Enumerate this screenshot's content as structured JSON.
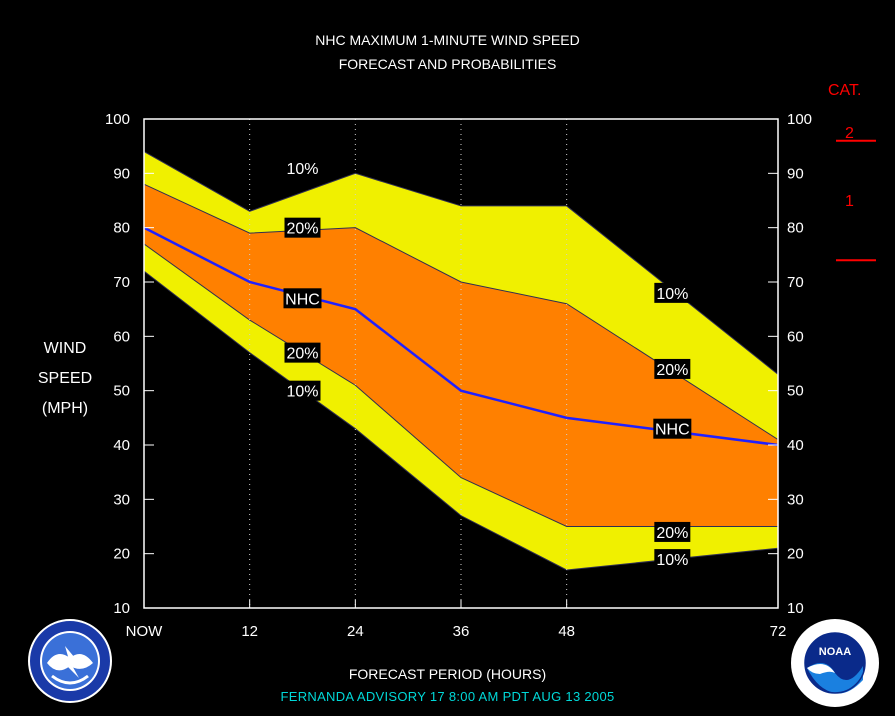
{
  "header": {
    "title_line1": "NHC MAXIMUM 1-MINUTE WIND SPEED",
    "title_line2": "FORECAST AND PROBABILITIES"
  },
  "ylabel": {
    "line1": "WIND",
    "line2": "SPEED",
    "line3": "(MPH)"
  },
  "xlabel": "FORECAST PERIOD (HOURS)",
  "advisory": "FERNANDA   ADVISORY  17  8:00  AM  PDT  AUG  13  2005",
  "category": {
    "label": "CAT.",
    "cat2": "2",
    "cat1": "1"
  },
  "colors": {
    "yellow": "#f0f000",
    "orange": "#ff8000",
    "nhc_line": "#2020ff",
    "cat": "#ff0000",
    "advisory": "#00d8d8"
  },
  "logos": {
    "left": "nws-logo",
    "right": "noaa-logo"
  },
  "chart_data": {
    "type": "area",
    "x_ticks": [
      {
        "x": 0,
        "label": "NOW"
      },
      {
        "x": 12,
        "label": "12"
      },
      {
        "x": 24,
        "label": "24"
      },
      {
        "x": 36,
        "label": "36"
      },
      {
        "x": 48,
        "label": "48"
      },
      {
        "x": 72,
        "label": "72"
      }
    ],
    "xlim": [
      0,
      72
    ],
    "ylim": [
      10,
      100
    ],
    "y_ticks": [
      10,
      20,
      30,
      40,
      50,
      60,
      70,
      80,
      90,
      100
    ],
    "gridlines_x": [
      12,
      24,
      36,
      48
    ],
    "x": [
      0,
      12,
      24,
      36,
      48,
      72
    ],
    "series": [
      {
        "name": "10%",
        "role": "upper_10",
        "values": [
          94,
          83,
          90,
          84,
          84,
          53
        ]
      },
      {
        "name": "20%",
        "role": "upper_20",
        "values": [
          88,
          79,
          80,
          70,
          66,
          41
        ]
      },
      {
        "name": "NHC",
        "role": "nhc",
        "values": [
          80,
          70,
          65,
          50,
          45,
          40
        ]
      },
      {
        "name": "20%",
        "role": "lower_20",
        "values": [
          77,
          63,
          51,
          34,
          25,
          25
        ]
      },
      {
        "name": "10%",
        "role": "lower_10",
        "values": [
          72,
          57,
          43,
          27,
          17,
          21
        ]
      }
    ],
    "band_labels": [
      {
        "text": "10%",
        "x": 18,
        "y": 91
      },
      {
        "text": "20%",
        "x": 18,
        "y": 80
      },
      {
        "text": "NHC",
        "x": 18,
        "y": 67
      },
      {
        "text": "20%",
        "x": 18,
        "y": 57
      },
      {
        "text": "10%",
        "x": 18,
        "y": 50
      },
      {
        "text": "10%",
        "x": 60,
        "y": 68
      },
      {
        "text": "20%",
        "x": 60,
        "y": 54
      },
      {
        "text": "NHC",
        "x": 60,
        "y": 43
      },
      {
        "text": "20%",
        "x": 60,
        "y": 24
      },
      {
        "text": "10%",
        "x": 60,
        "y": 19
      }
    ],
    "category_thresholds": [
      74,
      96
    ]
  }
}
